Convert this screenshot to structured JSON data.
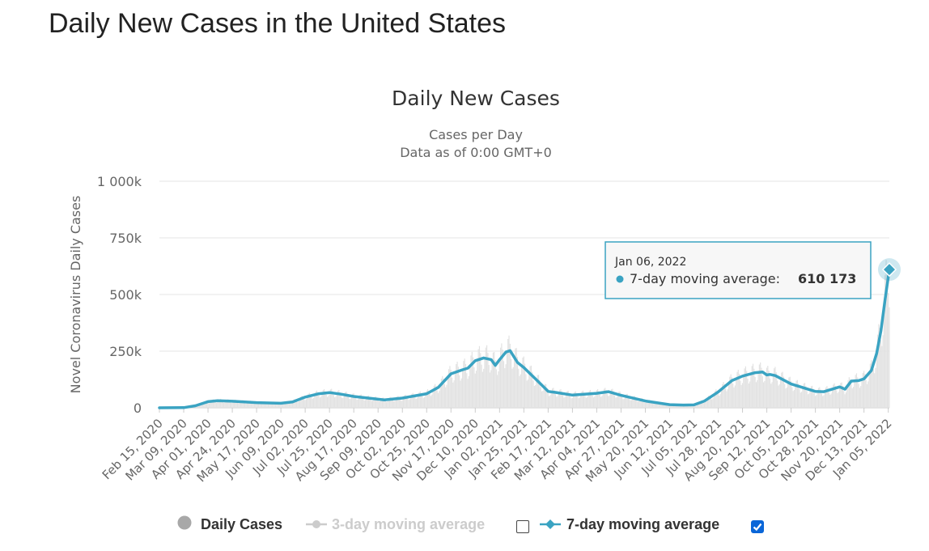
{
  "page": {
    "title": "Daily New Cases in the United States"
  },
  "colors": {
    "accent": "#3aa3c2",
    "bars": "#e2e2e2",
    "grid": "#e6e6e6",
    "muted": "#cccccc",
    "checkbox": "#0a66d8"
  },
  "chart_data": {
    "type": "line",
    "title": "Daily New Cases",
    "subtitle_lines": [
      "Cases per Day",
      "Data as of 0:00 GMT+0"
    ],
    "ylabel": "Novel Coronavirus Daily Cases",
    "xlabel": "",
    "ylim": [
      0,
      1000000
    ],
    "y_ticks": [
      {
        "value": 0,
        "label": "0"
      },
      {
        "value": 250000,
        "label": "250k"
      },
      {
        "value": 500000,
        "label": "500k"
      },
      {
        "value": 750000,
        "label": "750k"
      },
      {
        "value": 1000000,
        "label": "1 000k"
      }
    ],
    "x_start_date": "2020-02-15",
    "x_end_date": "2022-01-06",
    "x_ticks": [
      "Feb 15, 2020",
      "Mar 09, 2020",
      "Apr 01, 2020",
      "Apr 24, 2020",
      "May 17, 2020",
      "Jun 09, 2020",
      "Jul 02, 2020",
      "Jul 25, 2020",
      "Aug 17, 2020",
      "Sep 09, 2020",
      "Oct 02, 2020",
      "Oct 25, 2020",
      "Nov 17, 2020",
      "Dec 10, 2020",
      "Jan 02, 2021",
      "Jan 25, 2021",
      "Feb 17, 2021",
      "Mar 12, 2021",
      "Apr 04, 2021",
      "Apr 27, 2021",
      "May 20, 2021",
      "Jun 12, 2021",
      "Jul 05, 2021",
      "Jul 28, 2021",
      "Aug 20, 2021",
      "Sep 12, 2021",
      "Oct 05, 2021",
      "Oct 28, 2021",
      "Nov 20, 2021",
      "Dec 13, 2021",
      "Jan 05, 2022"
    ],
    "series": [
      {
        "name": "7-day moving average",
        "points": [
          [
            "2020-02-15",
            0
          ],
          [
            "2020-03-09",
            600
          ],
          [
            "2020-03-20",
            9000
          ],
          [
            "2020-04-01",
            27000
          ],
          [
            "2020-04-10",
            31000
          ],
          [
            "2020-04-24",
            29000
          ],
          [
            "2020-05-17",
            23000
          ],
          [
            "2020-06-09",
            20000
          ],
          [
            "2020-06-20",
            26000
          ],
          [
            "2020-07-02",
            47000
          ],
          [
            "2020-07-15",
            62000
          ],
          [
            "2020-07-25",
            67000
          ],
          [
            "2020-08-05",
            60000
          ],
          [
            "2020-08-17",
            50000
          ],
          [
            "2020-09-09",
            38000
          ],
          [
            "2020-09-15",
            35000
          ],
          [
            "2020-10-02",
            43000
          ],
          [
            "2020-10-25",
            62000
          ],
          [
            "2020-11-05",
            90000
          ],
          [
            "2020-11-17",
            150000
          ],
          [
            "2020-11-28",
            168000
          ],
          [
            "2020-12-03",
            175000
          ],
          [
            "2020-12-10",
            208000
          ],
          [
            "2020-12-18",
            220000
          ],
          [
            "2020-12-25",
            213000
          ],
          [
            "2020-12-29",
            187000
          ],
          [
            "2021-01-02",
            212000
          ],
          [
            "2021-01-08",
            246000
          ],
          [
            "2021-01-12",
            252000
          ],
          [
            "2021-01-19",
            200000
          ],
          [
            "2021-01-25",
            178000
          ],
          [
            "2021-02-05",
            128000
          ],
          [
            "2021-02-17",
            72000
          ],
          [
            "2021-02-24",
            68000
          ],
          [
            "2021-03-12",
            56000
          ],
          [
            "2021-04-04",
            64000
          ],
          [
            "2021-04-15",
            71000
          ],
          [
            "2021-04-27",
            55000
          ],
          [
            "2021-05-20",
            30000
          ],
          [
            "2021-06-12",
            14000
          ],
          [
            "2021-06-25",
            12000
          ],
          [
            "2021-07-05",
            13000
          ],
          [
            "2021-07-15",
            30000
          ],
          [
            "2021-07-28",
            70000
          ],
          [
            "2021-08-10",
            120000
          ],
          [
            "2021-08-20",
            140000
          ],
          [
            "2021-09-01",
            155000
          ],
          [
            "2021-09-08",
            158000
          ],
          [
            "2021-09-12",
            145000
          ],
          [
            "2021-09-15",
            147000
          ],
          [
            "2021-09-20",
            142000
          ],
          [
            "2021-10-05",
            105000
          ],
          [
            "2021-10-28",
            72000
          ],
          [
            "2021-11-05",
            71000
          ],
          [
            "2021-11-20",
            92000
          ],
          [
            "2021-11-25",
            82000
          ],
          [
            "2021-12-01",
            118000
          ],
          [
            "2021-12-08",
            120000
          ],
          [
            "2021-12-13",
            128000
          ],
          [
            "2021-12-20",
            165000
          ],
          [
            "2021-12-25",
            240000
          ],
          [
            "2021-12-29",
            340000
          ],
          [
            "2022-01-02",
            480000
          ],
          [
            "2022-01-06",
            610173
          ]
        ]
      }
    ],
    "tooltip": {
      "date": "Jan 06, 2022",
      "series": "7-day moving average",
      "label": "7-day moving average:",
      "value": 610173,
      "value_text": "610 173"
    },
    "legend": [
      {
        "name": "Daily Cases",
        "enabled": true
      },
      {
        "name": "3-day moving average",
        "enabled": false,
        "checked": false
      },
      {
        "name": "7-day moving average",
        "enabled": true,
        "checked": true
      }
    ]
  }
}
